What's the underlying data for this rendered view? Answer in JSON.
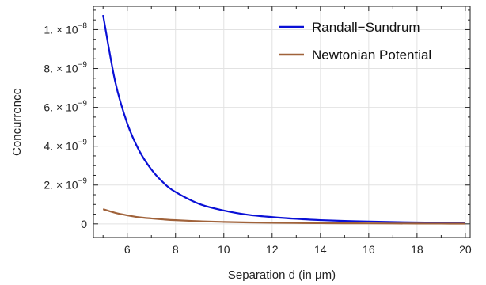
{
  "chart_data": {
    "type": "line",
    "title": "",
    "xlabel": "Separation d (in μm)",
    "ylabel": "Concurrence",
    "xlim": [
      4.6,
      20.2
    ],
    "ylim": [
      -7e-10,
      1.12e-08
    ],
    "x_ticks": [
      6,
      8,
      10,
      12,
      14,
      16,
      18,
      20
    ],
    "x_tick_labels": [
      "6",
      "8",
      "10",
      "12",
      "14",
      "16",
      "18",
      "20"
    ],
    "y_ticks": [
      0,
      2e-09,
      4e-09,
      6e-09,
      8e-09,
      1e-08
    ],
    "y_tick_labels": [
      {
        "mantissa": "0",
        "exponent": ""
      },
      {
        "mantissa": "2. × 10",
        "exponent": "−9"
      },
      {
        "mantissa": "4. × 10",
        "exponent": "−9"
      },
      {
        "mantissa": "6. × 10",
        "exponent": "−9"
      },
      {
        "mantissa": "8. × 10",
        "exponent": "−9"
      },
      {
        "mantissa": "1. × 10",
        "exponent": "−8"
      }
    ],
    "grid": true,
    "legend_position": "top-right",
    "series": [
      {
        "name": "Randall−Sundrum",
        "color": "#0a10d6",
        "x": [
          5,
          5.5,
          6,
          6.5,
          7,
          7.5,
          8,
          9,
          10,
          11,
          12,
          13,
          14,
          15,
          16,
          17,
          18,
          19,
          20
        ],
        "y": [
          1.075e-08,
          7.34e-09,
          5.18e-09,
          3.76e-09,
          2.8e-09,
          2.12e-09,
          1.64e-09,
          1.02e-09,
          6.9e-10,
          4.7e-10,
          3.5e-10,
          2.6e-10,
          1.95e-10,
          1.5e-10,
          1.2e-10,
          9.5e-11,
          7.5e-11,
          6e-11,
          5e-11
        ]
      },
      {
        "name": "Newtonian Potential",
        "color": "#a0623a",
        "x": [
          5,
          5.5,
          6,
          6.5,
          7,
          7.5,
          8,
          9,
          10,
          11,
          12,
          13,
          14,
          15,
          16,
          17,
          18,
          19,
          20
        ],
        "y": [
          7.6e-10,
          5.7e-10,
          4.4e-10,
          3.4e-10,
          2.8e-10,
          2.3e-10,
          1.9e-10,
          1.35e-10,
          1e-10,
          7.5e-11,
          5.8e-11,
          4.6e-11,
          3.7e-11,
          3e-11,
          2.5e-11,
          2.1e-11,
          1.8e-11,
          1.5e-11,
          1.3e-11
        ]
      }
    ]
  }
}
